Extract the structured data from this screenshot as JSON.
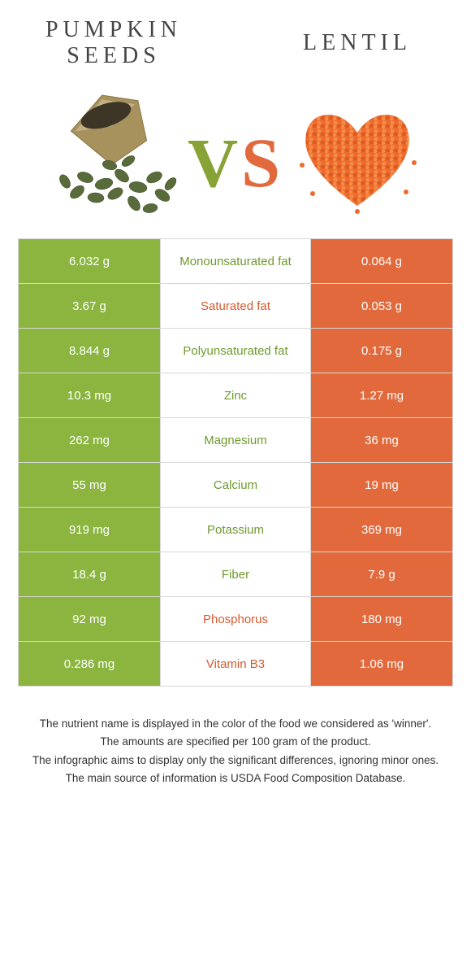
{
  "header": {
    "left_title": "Pumpkin seeds",
    "right_title": "Lentil",
    "vs_v": "V",
    "vs_s": "S"
  },
  "colors": {
    "green": "#8bb53f",
    "orange": "#e1693c",
    "green_text": "#6f9a2f",
    "orange_text": "#d45a30",
    "border": "#d8d8d8",
    "background": "#ffffff",
    "title_text": "#444444"
  },
  "left_image": {
    "description": "burlap sack spilling dark green pumpkin seeds",
    "seed_color": "#596b3a",
    "sack_color": "#a7925e"
  },
  "right_image": {
    "description": "orange lentils arranged in heart shape",
    "lentil_color": "#ed6b2d"
  },
  "rows": [
    {
      "nutrient": "Monounsaturated fat",
      "left": "6.032 g",
      "right": "0.064 g",
      "winner": "left"
    },
    {
      "nutrient": "Saturated fat",
      "left": "3.67 g",
      "right": "0.053 g",
      "winner": "right"
    },
    {
      "nutrient": "Polyunsaturated fat",
      "left": "8.844 g",
      "right": "0.175 g",
      "winner": "left"
    },
    {
      "nutrient": "Zinc",
      "left": "10.3 mg",
      "right": "1.27 mg",
      "winner": "left"
    },
    {
      "nutrient": "Magnesium",
      "left": "262 mg",
      "right": "36 mg",
      "winner": "left"
    },
    {
      "nutrient": "Calcium",
      "left": "55 mg",
      "right": "19 mg",
      "winner": "left"
    },
    {
      "nutrient": "Potassium",
      "left": "919 mg",
      "right": "369 mg",
      "winner": "left"
    },
    {
      "nutrient": "Fiber",
      "left": "18.4 g",
      "right": "7.9 g",
      "winner": "left"
    },
    {
      "nutrient": "Phosphorus",
      "left": "92 mg",
      "right": "180 mg",
      "winner": "right"
    },
    {
      "nutrient": "Vitamin B3",
      "left": "0.286 mg",
      "right": "1.06 mg",
      "winner": "right"
    }
  ],
  "footnotes": [
    "The nutrient name is displayed in the color of the food we considered as 'winner'.",
    "The amounts are specified per 100 gram of the product.",
    "The infographic aims to display only the significant differences, ignoring minor ones.",
    "The main source of information is USDA Food Composition Database."
  ]
}
